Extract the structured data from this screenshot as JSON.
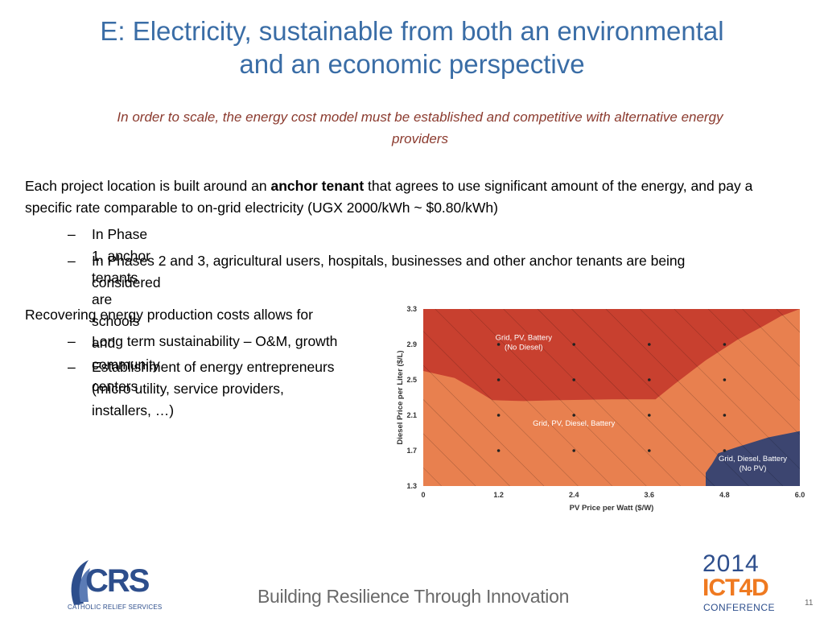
{
  "slide": {
    "title_line1": "E: Electricity, sustainable from both an environmental",
    "title_line2": "and an economic perspective",
    "subtitle_line1": "In order to scale, the energy cost model must be established and competitive with alternative energy",
    "subtitle_line2": "providers",
    "para_before": "Each project location is built around an ",
    "para_bold": "anchor tenant",
    "para_after": " that agrees to use significant amount of the energy, and pay a specific rate comparable to on-grid electricity (UGX 2000/kWh ~ $0.80/kWh)",
    "bullets_1": [
      {
        "dash": "–",
        "text": "In Phase 1, anchor tenants are schools and community centers"
      },
      {
        "dash": "–",
        "text": "In Phases 2 and 3, agricultural users, hospitals, businesses and other anchor tenants are being"
      },
      {
        "dash": "",
        "text": "considered"
      }
    ],
    "recover_head": "Recovering energy production costs allows for",
    "bullets_2": [
      {
        "dash": "–",
        "text": "Long term sustainability – O&M, growth"
      },
      {
        "dash": "–",
        "text": "Establishment of energy entrepreneurs"
      },
      {
        "dash": "",
        "text": "(micro utility, service providers,"
      },
      {
        "dash": "",
        "text": "installers,  …)"
      }
    ],
    "footer_tagline": "Building Resilience Through Innovation",
    "page_number": "11"
  },
  "logos": {
    "crs_word": "CRS",
    "crs_sub": "CATHOLIC RELIEF SERVICES",
    "ict_year": "2014",
    "ict_name": "ICT4D",
    "ict_conf": "CONFERENCE"
  },
  "colors": {
    "title": "#3a6da6",
    "subtitle": "#8b3a2e",
    "region_grid_pv_battery": "#c8402f",
    "region_grid_pv_diesel_battery": "#e8804f",
    "region_grid_diesel_battery": "#3c4570",
    "crs_blue": "#2d4e8c",
    "ict_orange": "#ef7a21"
  },
  "chart_data": {
    "type": "heatmap",
    "title": "",
    "xlabel": "PV Price per Watt ($/W)",
    "ylabel": "Diesel Price per Liter ($/L)",
    "xlim": [
      0,
      6.0
    ],
    "ylim": [
      1.3,
      3.3
    ],
    "x_ticks": [
      "0",
      "1.2",
      "2.4",
      "3.6",
      "4.8",
      "6.0"
    ],
    "y_ticks": [
      "3.3",
      "2.9",
      "2.5",
      "2.1",
      "1.7",
      "1.3"
    ],
    "sample_points_x": [
      1.2,
      2.4,
      3.6,
      4.8
    ],
    "sample_points_y": [
      1.7,
      2.1,
      2.5,
      2.9
    ],
    "regions": [
      {
        "label_line1": "Grid, PV, Battery",
        "label_line2": "(No Diesel)",
        "label_x": 1.6,
        "label_y": 2.95,
        "color": "#c8402f",
        "lower_boundary": [
          [
            0,
            2.6
          ],
          [
            0.5,
            2.52
          ],
          [
            0.8,
            2.4
          ],
          [
            1.1,
            2.27
          ],
          [
            1.6,
            2.26
          ],
          [
            2.2,
            2.27
          ],
          [
            3.0,
            2.28
          ],
          [
            3.7,
            2.28
          ],
          [
            4.0,
            2.45
          ],
          [
            4.5,
            2.72
          ],
          [
            5.0,
            2.95
          ],
          [
            5.4,
            3.1
          ],
          [
            5.7,
            3.22
          ],
          [
            6.0,
            3.3
          ]
        ]
      },
      {
        "label_line1": "Grid, PV, Diesel, Battery",
        "label_line2": "",
        "label_x": 2.4,
        "label_y": 1.98,
        "color": "#e8804f"
      },
      {
        "label_line1": "Grid, Diesel, Battery",
        "label_line2": "(No PV)",
        "label_x": 5.25,
        "label_y": 1.58,
        "color": "#3c4570",
        "upper_boundary": [
          [
            4.5,
            1.3
          ],
          [
            4.5,
            1.45
          ],
          [
            4.6,
            1.55
          ],
          [
            4.7,
            1.67
          ],
          [
            5.0,
            1.74
          ],
          [
            5.5,
            1.85
          ],
          [
            6.0,
            1.92
          ]
        ]
      }
    ]
  }
}
